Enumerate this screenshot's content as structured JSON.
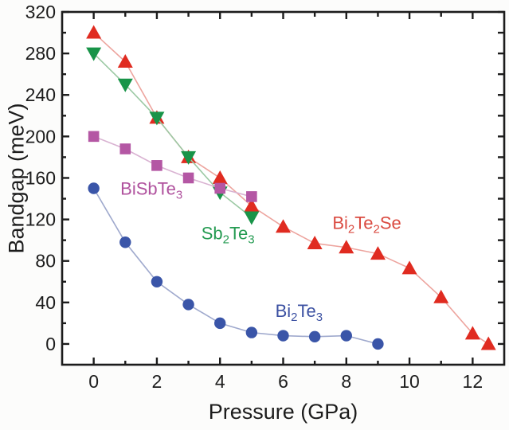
{
  "figure": {
    "background": "#fcfcfb",
    "plot_background": "#ffffff",
    "frame_color": "#1c1c1c",
    "text_color": "#1c1c1c"
  },
  "chart_data": {
    "type": "line",
    "title": "",
    "xlabel": "Pressure (GPa)",
    "ylabel": "Bandgap (meV)",
    "xlim": [
      -1,
      13
    ],
    "ylim": [
      -20,
      320
    ],
    "x_major_ticks": [
      0,
      2,
      4,
      6,
      8,
      10,
      12
    ],
    "x_minor_ticks": [
      1,
      3,
      5,
      7,
      9,
      11
    ],
    "y_major_ticks": [
      0,
      40,
      80,
      120,
      160,
      200,
      240,
      280,
      320
    ],
    "y_minor_ticks": [
      20,
      60,
      100,
      140,
      180,
      220,
      260,
      300
    ],
    "grid": false,
    "legend_position": "inline-annotations",
    "series": [
      {
        "id": "bi2te3",
        "label": "Bi_2Te_3",
        "marker": "circle",
        "marker_color": "#3a55a8",
        "line_color": "#9fa9cd",
        "label_color": "#3c51a2",
        "x": [
          0,
          1,
          2,
          3,
          4,
          5,
          6,
          7,
          8,
          9
        ],
        "y": [
          150,
          98,
          60,
          38,
          20,
          11,
          8,
          7,
          8,
          0
        ],
        "annotation": {
          "x": 6.5,
          "y": 32
        }
      },
      {
        "id": "bi2te2se",
        "label": "Bi_2Te_2Se",
        "marker": "triangle-up",
        "marker_color": "#e02b20",
        "line_color": "#eda49e",
        "label_color": "#da4a40",
        "x": [
          0,
          1,
          2,
          3,
          4,
          5,
          6,
          7,
          8,
          9,
          10,
          11,
          12,
          12.5
        ],
        "y": [
          300,
          272,
          218,
          180,
          160,
          133,
          113,
          97,
          93,
          87,
          73,
          45,
          10,
          0
        ],
        "annotation": {
          "x": 8.65,
          "y": 117
        }
      },
      {
        "id": "sb2te3",
        "label": "Sb_2Te_3",
        "marker": "triangle-down",
        "marker_color": "#189448",
        "line_color": "#9cc9a4",
        "label_color": "#259b52",
        "x": [
          0,
          1,
          2,
          3,
          4,
          5
        ],
        "y": [
          280,
          250,
          218,
          180,
          146,
          122
        ],
        "annotation": {
          "x": 4.25,
          "y": 107
        }
      },
      {
        "id": "bisbte3",
        "label": "BiSbTe_3",
        "marker": "square",
        "marker_color": "#b457a4",
        "line_color": "#d9b3d2",
        "label_color": "#b0529e",
        "x": [
          0,
          1,
          2,
          3,
          4,
          5
        ],
        "y": [
          200,
          188,
          172,
          160,
          150,
          142
        ],
        "annotation": {
          "x": 1.83,
          "y": 150
        }
      }
    ]
  }
}
